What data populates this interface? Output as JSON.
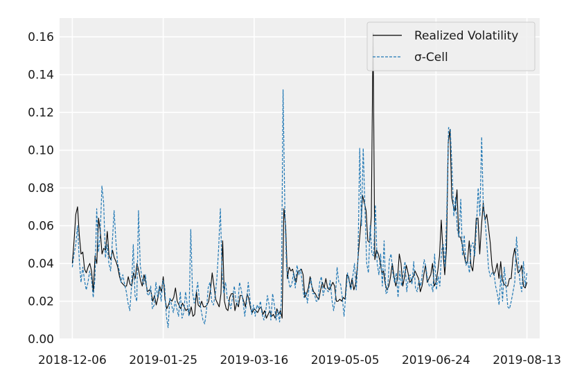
{
  "chart_data": {
    "type": "line",
    "title": "",
    "xlabel": "",
    "ylabel": "",
    "x_start": "2018-12-06",
    "x_end": "2019-08-13",
    "xlim": [
      "2018-11-29",
      "2019-08-20"
    ],
    "ylim": [
      0,
      0.17
    ],
    "xticks": [
      "2018-12-06",
      "2019-01-25",
      "2019-03-16",
      "2019-05-05",
      "2019-06-24",
      "2019-08-13"
    ],
    "yticks": [
      0,
      0.02,
      0.04,
      0.06,
      0.08,
      0.1,
      0.12,
      0.14,
      0.16
    ],
    "ytick_labels": [
      "0.00",
      "0.02",
      "0.04",
      "0.06",
      "0.08",
      "0.10",
      "0.12",
      "0.14",
      "0.16"
    ],
    "grid": true,
    "legend_position": "top-right",
    "series": [
      {
        "name": "Realized Volatility",
        "color": "#000000",
        "style": "solid",
        "values": [
          0.04,
          0.052,
          0.066,
          0.07,
          0.055,
          0.045,
          0.046,
          0.037,
          0.035,
          0.038,
          0.04,
          0.036,
          0.025,
          0.044,
          0.04,
          0.064,
          0.057,
          0.045,
          0.048,
          0.047,
          0.057,
          0.044,
          0.042,
          0.047,
          0.043,
          0.041,
          0.038,
          0.033,
          0.03,
          0.029,
          0.028,
          0.028,
          0.033,
          0.029,
          0.028,
          0.035,
          0.032,
          0.04,
          0.036,
          0.031,
          0.028,
          0.034,
          0.03,
          0.025,
          0.026,
          0.025,
          0.02,
          0.023,
          0.018,
          0.022,
          0.028,
          0.025,
          0.033,
          0.021,
          0.016,
          0.018,
          0.021,
          0.02,
          0.022,
          0.027,
          0.02,
          0.018,
          0.016,
          0.019,
          0.017,
          0.015,
          0.016,
          0.013,
          0.017,
          0.012,
          0.013,
          0.025,
          0.018,
          0.017,
          0.02,
          0.017,
          0.017,
          0.018,
          0.02,
          0.026,
          0.035,
          0.028,
          0.021,
          0.019,
          0.017,
          0.024,
          0.052,
          0.02,
          0.016,
          0.015,
          0.022,
          0.024,
          0.024,
          0.015,
          0.019,
          0.017,
          0.023,
          0.023,
          0.02,
          0.017,
          0.024,
          0.021,
          0.016,
          0.014,
          0.016,
          0.015,
          0.014,
          0.016,
          0.017,
          0.013,
          0.015,
          0.011,
          0.013,
          0.015,
          0.012,
          0.013,
          0.011,
          0.016,
          0.013,
          0.015,
          0.011,
          0.069,
          0.06,
          0.032,
          0.038,
          0.036,
          0.037,
          0.033,
          0.03,
          0.036,
          0.036,
          0.037,
          0.034,
          0.022,
          0.024,
          0.027,
          0.033,
          0.028,
          0.025,
          0.024,
          0.022,
          0.021,
          0.026,
          0.03,
          0.027,
          0.032,
          0.027,
          0.026,
          0.028,
          0.03,
          0.028,
          0.02,
          0.02,
          0.021,
          0.02,
          0.022,
          0.021,
          0.034,
          0.033,
          0.027,
          0.032,
          0.026,
          0.029,
          0.038,
          0.05,
          0.061,
          0.076,
          0.072,
          0.068,
          0.052,
          0.051,
          0.065,
          0.162,
          0.042,
          0.047,
          0.045,
          0.041,
          0.035,
          0.036,
          0.029,
          0.026,
          0.028,
          0.033,
          0.04,
          0.033,
          0.028,
          0.032,
          0.045,
          0.04,
          0.028,
          0.033,
          0.039,
          0.035,
          0.03,
          0.031,
          0.033,
          0.036,
          0.034,
          0.032,
          0.025,
          0.028,
          0.034,
          0.039,
          0.03,
          0.032,
          0.034,
          0.04,
          0.028,
          0.03,
          0.036,
          0.044,
          0.063,
          0.046,
          0.034,
          0.048,
          0.104,
          0.111,
          0.075,
          0.07,
          0.068,
          0.079,
          0.054,
          0.054,
          0.05,
          0.045,
          0.04,
          0.041,
          0.052,
          0.039,
          0.036,
          0.046,
          0.064,
          0.064,
          0.045,
          0.06,
          0.072,
          0.063,
          0.066,
          0.059,
          0.051,
          0.039,
          0.034,
          0.036,
          0.04,
          0.032,
          0.041,
          0.031,
          0.029,
          0.028,
          0.028,
          0.032,
          0.032,
          0.043,
          0.048,
          0.041,
          0.035,
          0.036,
          0.039,
          0.028,
          0.027,
          0.03
        ]
      },
      {
        "name": "σ-Cell",
        "color": "#1f77b4",
        "style": "dashed",
        "values": [
          0.038,
          0.045,
          0.05,
          0.06,
          0.042,
          0.03,
          0.038,
          0.031,
          0.026,
          0.03,
          0.036,
          0.032,
          0.022,
          0.032,
          0.069,
          0.046,
          0.055,
          0.081,
          0.072,
          0.043,
          0.05,
          0.04,
          0.036,
          0.052,
          0.068,
          0.052,
          0.04,
          0.036,
          0.03,
          0.034,
          0.029,
          0.025,
          0.019,
          0.015,
          0.028,
          0.05,
          0.023,
          0.02,
          0.068,
          0.039,
          0.032,
          0.029,
          0.034,
          0.024,
          0.023,
          0.028,
          0.016,
          0.018,
          0.03,
          0.022,
          0.028,
          0.02,
          0.031,
          0.028,
          0.012,
          0.006,
          0.022,
          0.018,
          0.014,
          0.02,
          0.016,
          0.012,
          0.025,
          0.011,
          0.014,
          0.025,
          0.018,
          0.012,
          0.058,
          0.025,
          0.019,
          0.024,
          0.03,
          0.02,
          0.015,
          0.01,
          0.008,
          0.015,
          0.027,
          0.03,
          0.02,
          0.018,
          0.023,
          0.032,
          0.048,
          0.069,
          0.035,
          0.024,
          0.03,
          0.021,
          0.02,
          0.016,
          0.022,
          0.028,
          0.02,
          0.018,
          0.03,
          0.026,
          0.02,
          0.012,
          0.019,
          0.03,
          0.021,
          0.013,
          0.018,
          0.012,
          0.018,
          0.016,
          0.02,
          0.013,
          0.01,
          0.014,
          0.023,
          0.018,
          0.01,
          0.024,
          0.018,
          0.01,
          0.015,
          0.009,
          0.02,
          0.132,
          0.07,
          0.038,
          0.032,
          0.027,
          0.029,
          0.035,
          0.027,
          0.039,
          0.034,
          0.037,
          0.03,
          0.022,
          0.025,
          0.019,
          0.028,
          0.032,
          0.024,
          0.024,
          0.02,
          0.02,
          0.03,
          0.033,
          0.023,
          0.027,
          0.026,
          0.025,
          0.031,
          0.021,
          0.015,
          0.021,
          0.038,
          0.03,
          0.029,
          0.022,
          0.012,
          0.023,
          0.035,
          0.03,
          0.026,
          0.033,
          0.04,
          0.026,
          0.042,
          0.101,
          0.06,
          0.101,
          0.07,
          0.04,
          0.035,
          0.06,
          0.045,
          0.044,
          0.071,
          0.04,
          0.034,
          0.045,
          0.028,
          0.052,
          0.024,
          0.025,
          0.042,
          0.045,
          0.035,
          0.03,
          0.035,
          0.022,
          0.036,
          0.028,
          0.035,
          0.041,
          0.025,
          0.033,
          0.034,
          0.029,
          0.041,
          0.027,
          0.025,
          0.031,
          0.028,
          0.035,
          0.042,
          0.038,
          0.031,
          0.028,
          0.029,
          0.025,
          0.045,
          0.026,
          0.033,
          0.028,
          0.047,
          0.05,
          0.038,
          0.068,
          0.112,
          0.111,
          0.09,
          0.065,
          0.075,
          0.058,
          0.054,
          0.074,
          0.044,
          0.055,
          0.039,
          0.041,
          0.035,
          0.05,
          0.051,
          0.044,
          0.059,
          0.08,
          0.065,
          0.107,
          0.068,
          0.063,
          0.05,
          0.037,
          0.033,
          0.035,
          0.035,
          0.028,
          0.024,
          0.018,
          0.034,
          0.02,
          0.038,
          0.028,
          0.017,
          0.016,
          0.02,
          0.025,
          0.03,
          0.054,
          0.042,
          0.03,
          0.025,
          0.041,
          0.028,
          0.035
        ]
      }
    ]
  }
}
